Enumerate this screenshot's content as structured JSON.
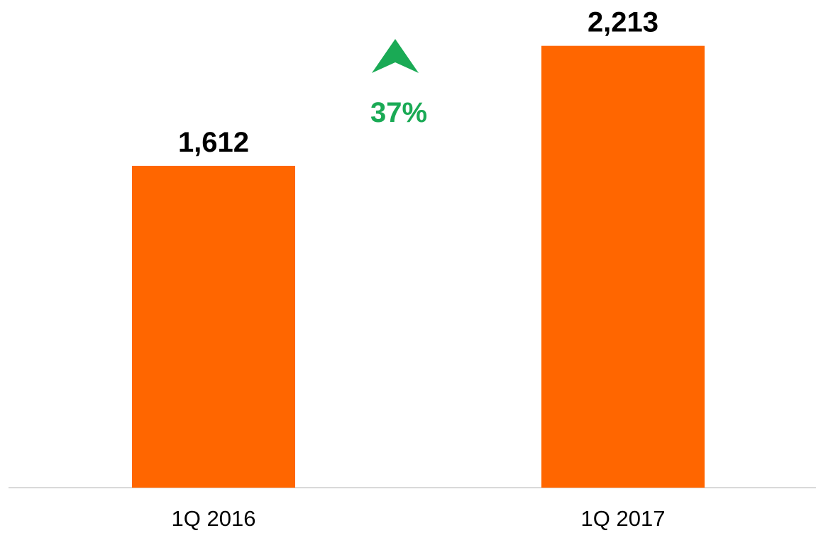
{
  "chart_data": {
    "type": "bar",
    "categories": [
      "1Q 2016",
      "1Q 2017"
    ],
    "values": [
      1612,
      2213
    ],
    "value_labels": [
      "1,612",
      "2,213"
    ],
    "color": "#ff6600",
    "ylim": [
      0,
      2400
    ],
    "annotation": "37%",
    "annotation_color": "#1aaa55"
  }
}
